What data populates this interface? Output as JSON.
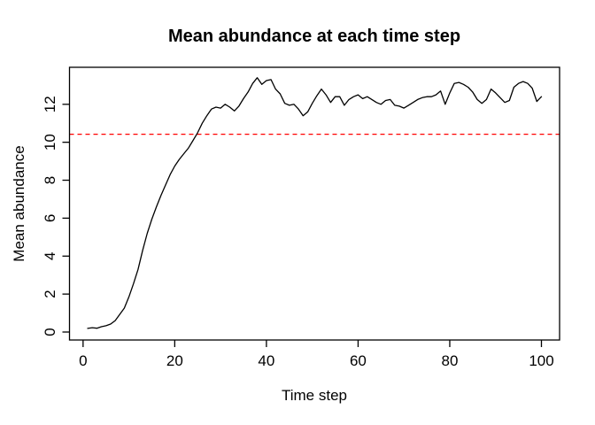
{
  "chart_data": {
    "type": "line",
    "title": "Mean abundance at each time step",
    "xlabel": "Time step",
    "ylabel": "Mean abundance",
    "x_ticks": [
      0,
      20,
      40,
      60,
      80,
      100
    ],
    "y_ticks": [
      0,
      2,
      4,
      6,
      8,
      10,
      12
    ],
    "xlim": [
      -2.96,
      103.96
    ],
    "ylim": [
      -0.42,
      13.95
    ],
    "grid": false,
    "legend": null,
    "box": true,
    "styles": {
      "line_color": "#000000",
      "axis_color": "#000000",
      "background": "#ffffff",
      "reference_color": "#ff0000"
    },
    "reference_line": {
      "y": 10.42,
      "style": "dashed",
      "color": "#ff0000"
    },
    "series": [
      {
        "name": "mean_abundance",
        "x": [
          1,
          2,
          3,
          4,
          5,
          6,
          7,
          8,
          9,
          10,
          11,
          12,
          13,
          14,
          15,
          16,
          17,
          18,
          19,
          20,
          21,
          22,
          23,
          24,
          25,
          26,
          27,
          28,
          29,
          30,
          31,
          32,
          33,
          34,
          35,
          36,
          37,
          38,
          39,
          40,
          41,
          42,
          43,
          44,
          45,
          46,
          47,
          48,
          49,
          50,
          51,
          52,
          53,
          54,
          55,
          56,
          57,
          58,
          59,
          60,
          61,
          62,
          63,
          64,
          65,
          66,
          67,
          68,
          69,
          70,
          71,
          72,
          73,
          74,
          75,
          76,
          77,
          78,
          79,
          80,
          81,
          82,
          83,
          84,
          85,
          86,
          87,
          88,
          89,
          90,
          91,
          92,
          93,
          94,
          95,
          96,
          97,
          98,
          99,
          100
        ],
        "y": [
          0.19,
          0.23,
          0.2,
          0.28,
          0.33,
          0.42,
          0.6,
          0.93,
          1.26,
          1.85,
          2.55,
          3.3,
          4.3,
          5.2,
          5.95,
          6.6,
          7.2,
          7.75,
          8.3,
          8.75,
          9.1,
          9.4,
          9.7,
          10.1,
          10.5,
          11.0,
          11.4,
          11.75,
          11.85,
          11.8,
          12.0,
          11.85,
          11.65,
          11.9,
          12.3,
          12.65,
          13.1,
          13.4,
          13.05,
          13.25,
          13.3,
          12.8,
          12.55,
          12.05,
          11.95,
          12.0,
          11.75,
          11.4,
          11.6,
          12.05,
          12.45,
          12.8,
          12.5,
          12.1,
          12.4,
          12.4,
          11.95,
          12.25,
          12.4,
          12.5,
          12.3,
          12.4,
          12.25,
          12.1,
          12.0,
          12.2,
          12.25,
          11.95,
          11.9,
          11.8,
          11.95,
          12.1,
          12.25,
          12.35,
          12.4,
          12.4,
          12.5,
          12.7,
          12.0,
          12.6,
          13.1,
          13.15,
          13.05,
          12.9,
          12.65,
          12.25,
          12.05,
          12.25,
          12.8,
          12.6,
          12.35,
          12.1,
          12.2,
          12.9,
          13.1,
          13.2,
          13.1,
          12.85,
          12.15,
          12.4
        ]
      }
    ]
  }
}
